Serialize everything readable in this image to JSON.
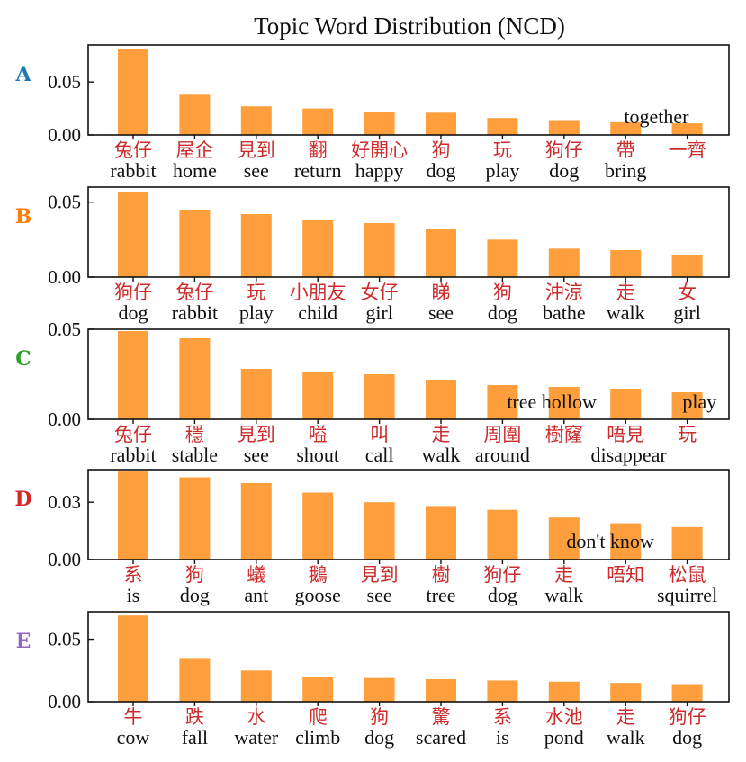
{
  "chart_data": {
    "type": "bar",
    "title": "Topic Word Distribution (NCD)",
    "bar_color": "#ff9e3d",
    "word_color": "#cc2c2c",
    "panels": [
      {
        "label": "A",
        "label_color": "#1f77b4",
        "ylim": [
          0,
          0.085
        ],
        "yticks": [
          0.0,
          0.05
        ],
        "ytick_labels": [
          "0.00",
          "0.05"
        ],
        "words": [
          "兔仔",
          "屋企",
          "見到",
          "翻",
          "好開心",
          "狗",
          "玩",
          "狗仔",
          "帶",
          "一齊"
        ],
        "translations": [
          "rabbit",
          "home",
          "see",
          "return",
          "happy",
          "dog",
          "play",
          "dog",
          "bring",
          ""
        ],
        "annotations": [
          {
            "text": "together",
            "index": 8.5
          }
        ],
        "values": [
          0.081,
          0.038,
          0.027,
          0.025,
          0.022,
          0.021,
          0.016,
          0.014,
          0.012,
          0.011
        ]
      },
      {
        "label": "B",
        "label_color": "#ff7f0e",
        "ylim": [
          0,
          0.06
        ],
        "yticks": [
          0.0,
          0.05
        ],
        "ytick_labels": [
          "0.00",
          "0.05"
        ],
        "words": [
          "狗仔",
          "兔仔",
          "玩",
          "小朋友",
          "女仔",
          "睇",
          "狗",
          "沖涼",
          "走",
          "女"
        ],
        "translations": [
          "dog",
          "rabbit",
          "play",
          "child",
          "girl",
          "see",
          "dog",
          "bathe",
          "walk",
          "girl"
        ],
        "annotations": [],
        "values": [
          0.057,
          0.045,
          0.042,
          0.038,
          0.036,
          0.032,
          0.025,
          0.019,
          0.018,
          0.015
        ]
      },
      {
        "label": "C",
        "label_color": "#2ca02c",
        "ylim": [
          0,
          0.05
        ],
        "yticks": [
          0.0,
          0.05
        ],
        "ytick_labels": [
          "0.00",
          "0.05"
        ],
        "words": [
          "兔仔",
          "穩",
          "見到",
          "嗌",
          "叫",
          "走",
          "周圍",
          "樹窿",
          "唔見",
          "玩"
        ],
        "translations": [
          "rabbit",
          "stable",
          "see",
          "shout",
          "call",
          "walk",
          "around",
          "",
          "",
          ""
        ],
        "annotations": [
          {
            "text": "tree hollow",
            "index": 6.8
          },
          {
            "text": "disappear",
            "index": 8.05
          },
          {
            "text": "play",
            "index": 9.2
          }
        ],
        "values": [
          0.049,
          0.045,
          0.028,
          0.026,
          0.025,
          0.022,
          0.019,
          0.018,
          0.017,
          0.015
        ]
      },
      {
        "label": "D",
        "label_color": "#d62728",
        "ylim": [
          0,
          0.047
        ],
        "yticks": [
          0.0,
          0.03
        ],
        "ytick_labels": [
          "0.00",
          "0.03"
        ],
        "words": [
          "系",
          "狗",
          "蟻",
          "鵝",
          "見到",
          "樹",
          "狗仔",
          "走",
          "唔知",
          "松鼠"
        ],
        "translations": [
          "is",
          "dog",
          "ant",
          "goose",
          "see",
          "tree",
          "dog",
          "walk",
          "",
          "squirrel"
        ],
        "annotations": [
          {
            "text": "don't know",
            "index": 7.75
          }
        ],
        "values": [
          0.046,
          0.043,
          0.04,
          0.035,
          0.03,
          0.028,
          0.026,
          0.022,
          0.019,
          0.017
        ]
      },
      {
        "label": "E",
        "label_color": "#9467bd",
        "ylim": [
          0,
          0.072
        ],
        "yticks": [
          0.0,
          0.05
        ],
        "ytick_labels": [
          "0.00",
          "0.05"
        ],
        "words": [
          "牛",
          "跌",
          "水",
          "爬",
          "狗",
          "驚",
          "系",
          "水池",
          "走",
          "狗仔"
        ],
        "translations": [
          "cow",
          "fall",
          "water",
          "climb",
          "dog",
          "scared",
          "is",
          "pond",
          "walk",
          "dog"
        ],
        "annotations": [],
        "values": [
          0.069,
          0.035,
          0.025,
          0.02,
          0.019,
          0.018,
          0.017,
          0.016,
          0.015,
          0.014
        ]
      }
    ]
  }
}
